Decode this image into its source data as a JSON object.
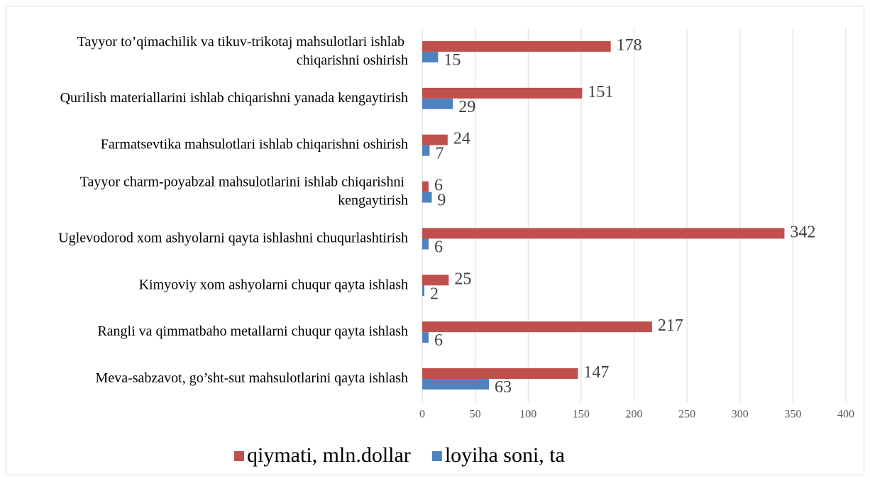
{
  "chart_data": {
    "type": "bar",
    "orientation": "horizontal",
    "categories": [
      "Tayyor to’qimachilik va tikuv-trikotaj mahsulotlari ishlab chiqarishni oshirish",
      "Qurilish materiallarini ishlab chiqarishni yanada kengaytirish",
      "Farmatsevtika mahsulotlari ishlab chiqarishni oshirish",
      "Tayyor charm-poyabzal mahsulotlarini ishlab chiqarishni kengaytirish",
      "Uglevodorod xom ashyolarni qayta ishlashni chuqurlashtirish",
      "Kimyoviy xom ashyolarni chuqur qayta ishlash",
      "Rangli va qimmatbaho metallarni chuqur qayta ishlash",
      "Meva-sabzavot, go’sht-sut mahsulotlarini qayta ishlash"
    ],
    "series": [
      {
        "name": "qiymati, mln.dollar",
        "color": "#c0504d",
        "values": [
          178,
          151,
          24,
          6,
          342,
          25,
          217,
          147
        ]
      },
      {
        "name": "loyiha soni, ta",
        "color": "#4f81bd",
        "values": [
          15,
          29,
          7,
          9,
          6,
          2,
          6,
          63
        ]
      }
    ],
    "xlim": [
      0,
      400
    ],
    "xticks": [
      0,
      50,
      100,
      150,
      200,
      250,
      300,
      350,
      400
    ],
    "grid": true,
    "legend": "bottom"
  }
}
